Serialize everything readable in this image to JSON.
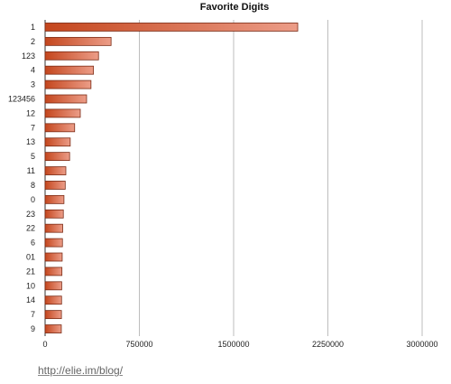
{
  "chart_data": {
    "type": "bar",
    "orientation": "horizontal",
    "title": "Favorite Digits",
    "xlabel": "",
    "ylabel": "",
    "categories": [
      "1",
      "2",
      "123",
      "4",
      "3",
      "123456",
      "12",
      "7",
      "13",
      "5",
      "11",
      "8",
      "0",
      "23",
      "22",
      "6",
      "01",
      "21",
      "10",
      "14",
      "7",
      "9"
    ],
    "values": [
      2010000,
      525000,
      425000,
      385000,
      365000,
      330000,
      280000,
      235000,
      200000,
      195000,
      165000,
      160000,
      150000,
      145000,
      140000,
      138000,
      136000,
      134000,
      132000,
      131000,
      130000,
      129000
    ],
    "xlim": [
      0,
      3000000
    ],
    "xticks": [
      0,
      750000,
      1500000,
      2250000,
      3000000
    ],
    "grid": true,
    "legend": "none",
    "colors": {
      "bar_start": "#c4461d",
      "bar_end": "#ec9d88",
      "bar_edge": "#7a2a14",
      "grid": "#bdbdbd"
    }
  },
  "footer": {
    "link_text": "http://elie.im/blog/"
  }
}
